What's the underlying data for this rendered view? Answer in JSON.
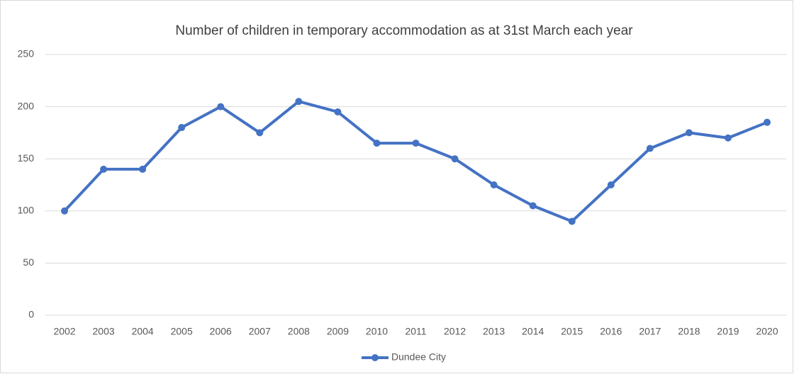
{
  "chart_data": {
    "type": "line",
    "title": "Number of children in temporary accommodation  as at 31st March each year",
    "categories": [
      "2002",
      "2003",
      "2004",
      "2005",
      "2006",
      "2007",
      "2008",
      "2009",
      "2010",
      "2011",
      "2012",
      "2013",
      "2014",
      "2015",
      "2016",
      "2017",
      "2018",
      "2019",
      "2020"
    ],
    "series": [
      {
        "name": "Dundee City",
        "color": "#4472c4",
        "values": [
          100,
          140,
          140,
          180,
          200,
          175,
          205,
          195,
          165,
          165,
          150,
          125,
          105,
          90,
          125,
          160,
          175,
          170,
          185
        ]
      }
    ],
    "ylim": [
      0,
      250
    ],
    "yticks": [
      0,
      50,
      100,
      150,
      200,
      250
    ],
    "grid": true,
    "legend": "bottom"
  }
}
